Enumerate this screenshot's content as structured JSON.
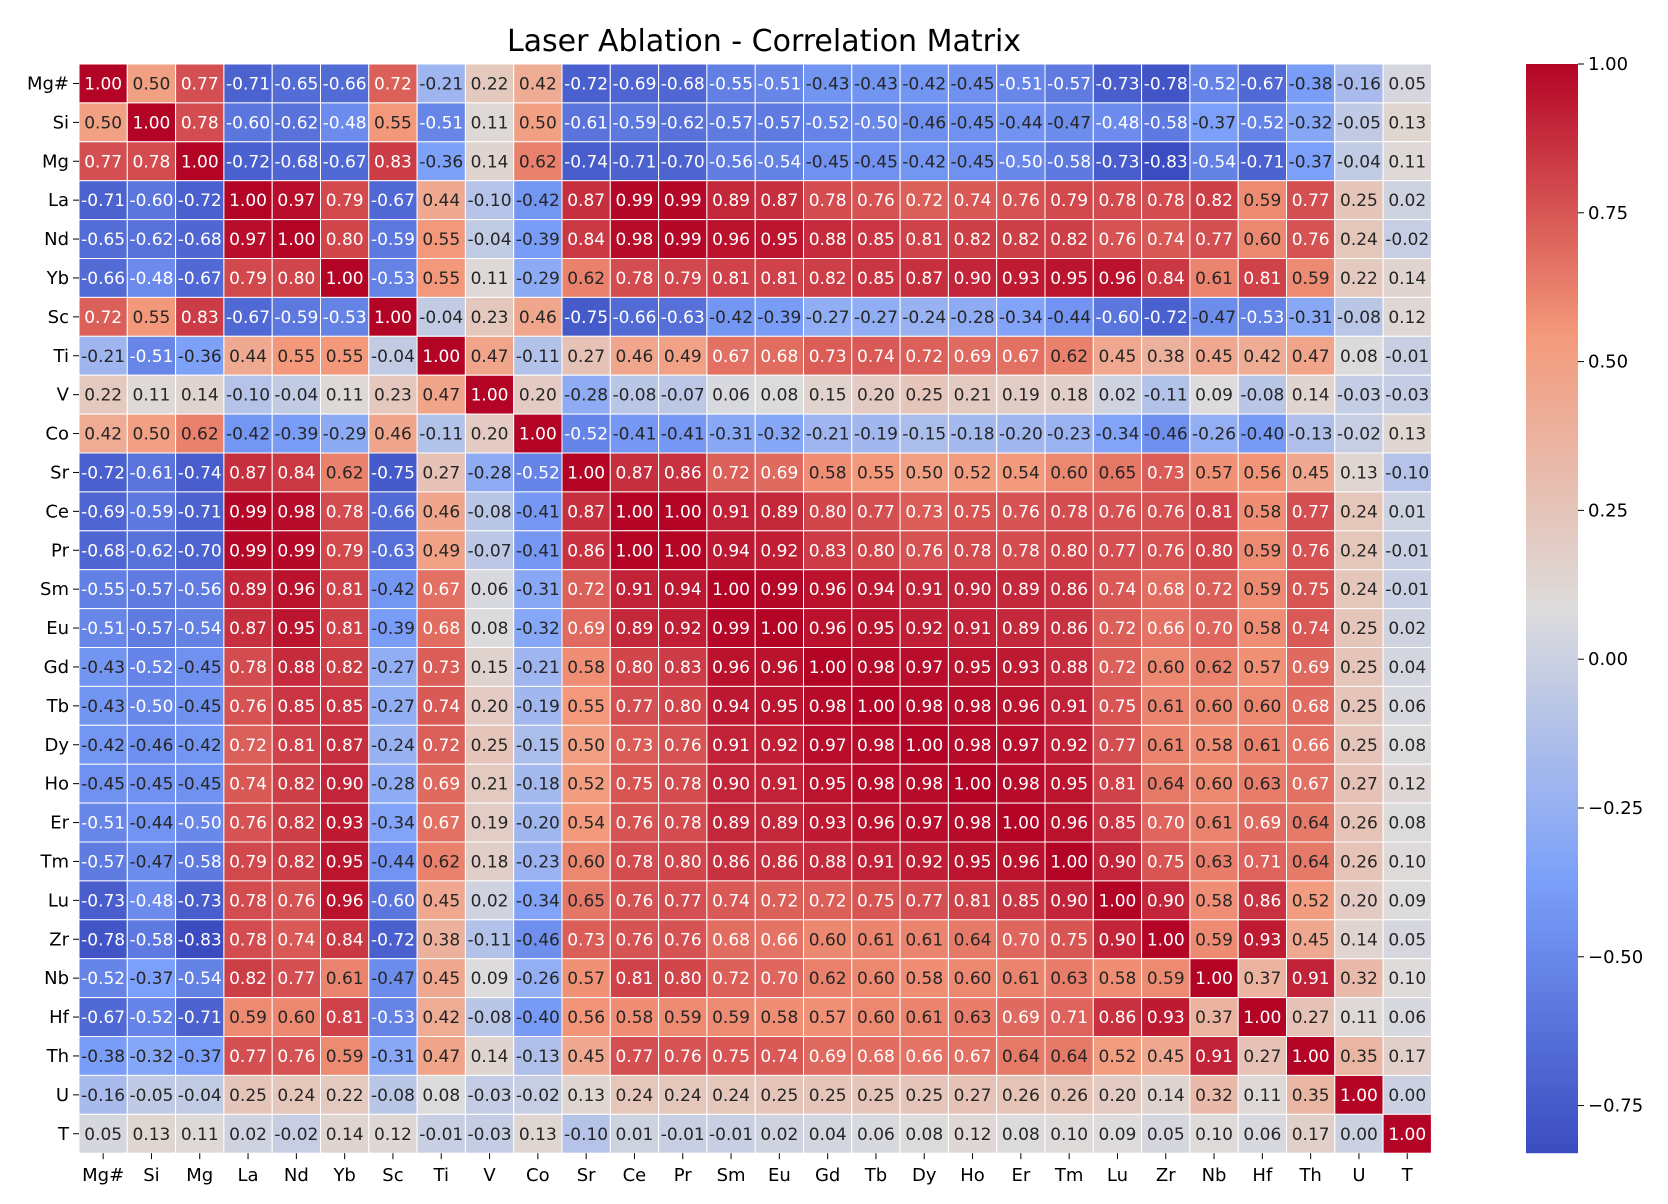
{
  "chart_data": {
    "type": "heatmap",
    "title": "Laser Ablation - Correlation Matrix",
    "labels": [
      "Mg#",
      "Si",
      "Mg",
      "La",
      "Nd",
      "Yb",
      "Sc",
      "Ti",
      "V",
      "Co",
      "Sr",
      "Ce",
      "Pr",
      "Sm",
      "Eu",
      "Gd",
      "Tb",
      "Dy",
      "Ho",
      "Er",
      "Tm",
      "Lu",
      "Zr",
      "Nb",
      "Hf",
      "Th",
      "U",
      "T"
    ],
    "values": [
      [
        1.0,
        0.5,
        0.77,
        -0.71,
        -0.65,
        -0.66,
        0.72,
        -0.21,
        0.22,
        0.42,
        -0.72,
        -0.69,
        -0.68,
        -0.55,
        -0.51,
        -0.43,
        -0.43,
        -0.42,
        -0.45,
        -0.51,
        -0.57,
        -0.73,
        -0.78,
        -0.52,
        -0.67,
        -0.38,
        -0.16,
        0.05
      ],
      [
        0.5,
        1.0,
        0.78,
        -0.6,
        -0.62,
        -0.48,
        0.55,
        -0.51,
        0.11,
        0.5,
        -0.61,
        -0.59,
        -0.62,
        -0.57,
        -0.57,
        -0.52,
        -0.5,
        -0.46,
        -0.45,
        -0.44,
        -0.47,
        -0.48,
        -0.58,
        -0.37,
        -0.52,
        -0.32,
        -0.05,
        0.13
      ],
      [
        0.77,
        0.78,
        1.0,
        -0.72,
        -0.68,
        -0.67,
        0.83,
        -0.36,
        0.14,
        0.62,
        -0.74,
        -0.71,
        -0.7,
        -0.56,
        -0.54,
        -0.45,
        -0.45,
        -0.42,
        -0.45,
        -0.5,
        -0.58,
        -0.73,
        -0.83,
        -0.54,
        -0.71,
        -0.37,
        -0.04,
        0.11
      ],
      [
        -0.71,
        -0.6,
        -0.72,
        1.0,
        0.97,
        0.79,
        -0.67,
        0.44,
        -0.1,
        -0.42,
        0.87,
        0.99,
        0.99,
        0.89,
        0.87,
        0.78,
        0.76,
        0.72,
        0.74,
        0.76,
        0.79,
        0.78,
        0.78,
        0.82,
        0.59,
        0.77,
        0.25,
        0.02
      ],
      [
        -0.65,
        -0.62,
        -0.68,
        0.97,
        1.0,
        0.8,
        -0.59,
        0.55,
        -0.04,
        -0.39,
        0.84,
        0.98,
        0.99,
        0.96,
        0.95,
        0.88,
        0.85,
        0.81,
        0.82,
        0.82,
        0.82,
        0.76,
        0.74,
        0.77,
        0.6,
        0.76,
        0.24,
        -0.02
      ],
      [
        -0.66,
        -0.48,
        -0.67,
        0.79,
        0.8,
        1.0,
        -0.53,
        0.55,
        0.11,
        -0.29,
        0.62,
        0.78,
        0.79,
        0.81,
        0.81,
        0.82,
        0.85,
        0.87,
        0.9,
        0.93,
        0.95,
        0.96,
        0.84,
        0.61,
        0.81,
        0.59,
        0.22,
        0.14
      ],
      [
        0.72,
        0.55,
        0.83,
        -0.67,
        -0.59,
        -0.53,
        1.0,
        -0.04,
        0.23,
        0.46,
        -0.75,
        -0.66,
        -0.63,
        -0.42,
        -0.39,
        -0.27,
        -0.27,
        -0.24,
        -0.28,
        -0.34,
        -0.44,
        -0.6,
        -0.72,
        -0.47,
        -0.53,
        -0.31,
        -0.08,
        0.12
      ],
      [
        -0.21,
        -0.51,
        -0.36,
        0.44,
        0.55,
        0.55,
        -0.04,
        1.0,
        0.47,
        -0.11,
        0.27,
        0.46,
        0.49,
        0.67,
        0.68,
        0.73,
        0.74,
        0.72,
        0.69,
        0.67,
        0.62,
        0.45,
        0.38,
        0.45,
        0.42,
        0.47,
        0.08,
        -0.01
      ],
      [
        0.22,
        0.11,
        0.14,
        -0.1,
        -0.04,
        0.11,
        0.23,
        0.47,
        1.0,
        0.2,
        -0.28,
        -0.08,
        -0.07,
        0.06,
        0.08,
        0.15,
        0.2,
        0.25,
        0.21,
        0.19,
        0.18,
        0.02,
        -0.11,
        0.09,
        -0.08,
        0.14,
        -0.03,
        -0.03
      ],
      [
        0.42,
        0.5,
        0.62,
        -0.42,
        -0.39,
        -0.29,
        0.46,
        -0.11,
        0.2,
        1.0,
        -0.52,
        -0.41,
        -0.41,
        -0.31,
        -0.32,
        -0.21,
        -0.19,
        -0.15,
        -0.18,
        -0.2,
        -0.23,
        -0.34,
        -0.46,
        -0.26,
        -0.4,
        -0.13,
        -0.02,
        0.13
      ],
      [
        -0.72,
        -0.61,
        -0.74,
        0.87,
        0.84,
        0.62,
        -0.75,
        0.27,
        -0.28,
        -0.52,
        1.0,
        0.87,
        0.86,
        0.72,
        0.69,
        0.58,
        0.55,
        0.5,
        0.52,
        0.54,
        0.6,
        0.65,
        0.73,
        0.57,
        0.56,
        0.45,
        0.13,
        -0.1
      ],
      [
        -0.69,
        -0.59,
        -0.71,
        0.99,
        0.98,
        0.78,
        -0.66,
        0.46,
        -0.08,
        -0.41,
        0.87,
        1.0,
        1.0,
        0.91,
        0.89,
        0.8,
        0.77,
        0.73,
        0.75,
        0.76,
        0.78,
        0.76,
        0.76,
        0.81,
        0.58,
        0.77,
        0.24,
        0.01
      ],
      [
        -0.68,
        -0.62,
        -0.7,
        0.99,
        0.99,
        0.79,
        -0.63,
        0.49,
        -0.07,
        -0.41,
        0.86,
        1.0,
        1.0,
        0.94,
        0.92,
        0.83,
        0.8,
        0.76,
        0.78,
        0.78,
        0.8,
        0.77,
        0.76,
        0.8,
        0.59,
        0.76,
        0.24,
        -0.01
      ],
      [
        -0.55,
        -0.57,
        -0.56,
        0.89,
        0.96,
        0.81,
        -0.42,
        0.67,
        0.06,
        -0.31,
        0.72,
        0.91,
        0.94,
        1.0,
        0.99,
        0.96,
        0.94,
        0.91,
        0.9,
        0.89,
        0.86,
        0.74,
        0.68,
        0.72,
        0.59,
        0.75,
        0.24,
        -0.01
      ],
      [
        -0.51,
        -0.57,
        -0.54,
        0.87,
        0.95,
        0.81,
        -0.39,
        0.68,
        0.08,
        -0.32,
        0.69,
        0.89,
        0.92,
        0.99,
        1.0,
        0.96,
        0.95,
        0.92,
        0.91,
        0.89,
        0.86,
        0.72,
        0.66,
        0.7,
        0.58,
        0.74,
        0.25,
        0.02
      ],
      [
        -0.43,
        -0.52,
        -0.45,
        0.78,
        0.88,
        0.82,
        -0.27,
        0.73,
        0.15,
        -0.21,
        0.58,
        0.8,
        0.83,
        0.96,
        0.96,
        1.0,
        0.98,
        0.97,
        0.95,
        0.93,
        0.88,
        0.72,
        0.6,
        0.62,
        0.57,
        0.69,
        0.25,
        0.04
      ],
      [
        -0.43,
        -0.5,
        -0.45,
        0.76,
        0.85,
        0.85,
        -0.27,
        0.74,
        0.2,
        -0.19,
        0.55,
        0.77,
        0.8,
        0.94,
        0.95,
        0.98,
        1.0,
        0.98,
        0.98,
        0.96,
        0.91,
        0.75,
        0.61,
        0.6,
        0.6,
        0.68,
        0.25,
        0.06
      ],
      [
        -0.42,
        -0.46,
        -0.42,
        0.72,
        0.81,
        0.87,
        -0.24,
        0.72,
        0.25,
        -0.15,
        0.5,
        0.73,
        0.76,
        0.91,
        0.92,
        0.97,
        0.98,
        1.0,
        0.98,
        0.97,
        0.92,
        0.77,
        0.61,
        0.58,
        0.61,
        0.66,
        0.25,
        0.08
      ],
      [
        -0.45,
        -0.45,
        -0.45,
        0.74,
        0.82,
        0.9,
        -0.28,
        0.69,
        0.21,
        -0.18,
        0.52,
        0.75,
        0.78,
        0.9,
        0.91,
        0.95,
        0.98,
        0.98,
        1.0,
        0.98,
        0.95,
        0.81,
        0.64,
        0.6,
        0.63,
        0.67,
        0.27,
        0.12
      ],
      [
        -0.51,
        -0.44,
        -0.5,
        0.76,
        0.82,
        0.93,
        -0.34,
        0.67,
        0.19,
        -0.2,
        0.54,
        0.76,
        0.78,
        0.89,
        0.89,
        0.93,
        0.96,
        0.97,
        0.98,
        1.0,
        0.96,
        0.85,
        0.7,
        0.61,
        0.69,
        0.64,
        0.26,
        0.08
      ],
      [
        -0.57,
        -0.47,
        -0.58,
        0.79,
        0.82,
        0.95,
        -0.44,
        0.62,
        0.18,
        -0.23,
        0.6,
        0.78,
        0.8,
        0.86,
        0.86,
        0.88,
        0.91,
        0.92,
        0.95,
        0.96,
        1.0,
        0.9,
        0.75,
        0.63,
        0.71,
        0.64,
        0.26,
        0.1
      ],
      [
        -0.73,
        -0.48,
        -0.73,
        0.78,
        0.76,
        0.96,
        -0.6,
        0.45,
        0.02,
        -0.34,
        0.65,
        0.76,
        0.77,
        0.74,
        0.72,
        0.72,
        0.75,
        0.77,
        0.81,
        0.85,
        0.9,
        1.0,
        0.9,
        0.58,
        0.86,
        0.52,
        0.2,
        0.09
      ],
      [
        -0.78,
        -0.58,
        -0.83,
        0.78,
        0.74,
        0.84,
        -0.72,
        0.38,
        -0.11,
        -0.46,
        0.73,
        0.76,
        0.76,
        0.68,
        0.66,
        0.6,
        0.61,
        0.61,
        0.64,
        0.7,
        0.75,
        0.9,
        1.0,
        0.59,
        0.93,
        0.45,
        0.14,
        0.05
      ],
      [
        -0.52,
        -0.37,
        -0.54,
        0.82,
        0.77,
        0.61,
        -0.47,
        0.45,
        0.09,
        -0.26,
        0.57,
        0.81,
        0.8,
        0.72,
        0.7,
        0.62,
        0.6,
        0.58,
        0.6,
        0.61,
        0.63,
        0.58,
        0.59,
        1.0,
        0.37,
        0.91,
        0.32,
        0.1
      ],
      [
        -0.67,
        -0.52,
        -0.71,
        0.59,
        0.6,
        0.81,
        -0.53,
        0.42,
        -0.08,
        -0.4,
        0.56,
        0.58,
        0.59,
        0.59,
        0.58,
        0.57,
        0.6,
        0.61,
        0.63,
        0.69,
        0.71,
        0.86,
        0.93,
        0.37,
        1.0,
        0.27,
        0.11,
        0.06
      ],
      [
        -0.38,
        -0.32,
        -0.37,
        0.77,
        0.76,
        0.59,
        -0.31,
        0.47,
        0.14,
        -0.13,
        0.45,
        0.77,
        0.76,
        0.75,
        0.74,
        0.69,
        0.68,
        0.66,
        0.67,
        0.64,
        0.64,
        0.52,
        0.45,
        0.91,
        0.27,
        1.0,
        0.35,
        0.17
      ],
      [
        -0.16,
        -0.05,
        -0.04,
        0.25,
        0.24,
        0.22,
        -0.08,
        0.08,
        -0.03,
        -0.02,
        0.13,
        0.24,
        0.24,
        0.24,
        0.25,
        0.25,
        0.25,
        0.25,
        0.27,
        0.26,
        0.26,
        0.2,
        0.14,
        0.32,
        0.11,
        0.35,
        1.0,
        0.0
      ],
      [
        0.05,
        0.13,
        0.11,
        0.02,
        -0.02,
        0.14,
        0.12,
        -0.01,
        -0.03,
        0.13,
        -0.1,
        0.01,
        -0.01,
        -0.01,
        0.02,
        0.04,
        0.06,
        0.08,
        0.12,
        0.08,
        0.1,
        0.09,
        0.05,
        0.1,
        0.06,
        0.17,
        0.0,
        1.0
      ]
    ],
    "colormap": "coolwarm",
    "vmin": -0.83,
    "vmax": 1.0,
    "colorbar_ticks": [
      1.0,
      0.75,
      0.5,
      0.25,
      0.0,
      -0.25,
      -0.5,
      -0.75
    ],
    "annot_format": "0.00",
    "grid_line_color": "#ffffff",
    "colormap_stops": [
      [
        0.0,
        "#3b4cc0"
      ],
      [
        0.25,
        "#7b9ff9"
      ],
      [
        0.5,
        "#dddcdc"
      ],
      [
        0.75,
        "#f49a7b"
      ],
      [
        1.0,
        "#b40426"
      ]
    ]
  }
}
